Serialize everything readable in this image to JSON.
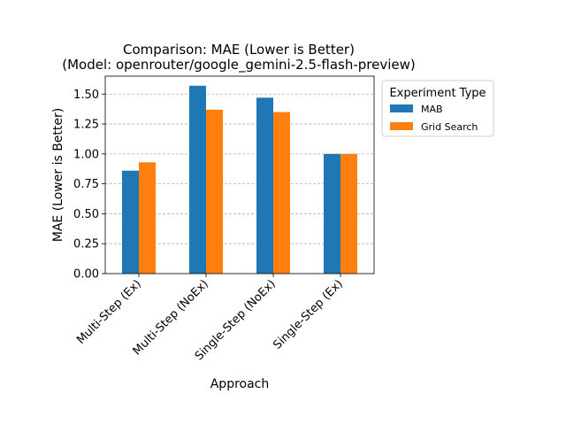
{
  "chart_data": {
    "type": "bar",
    "title": "Comparison: MAE (Lower is Better)",
    "subtitle": "(Model: openrouter/google_gemini-2.5-flash-preview)",
    "xlabel": "Approach",
    "ylabel": "MAE (Lower is Better)",
    "categories": [
      "Multi-Step (Ex)",
      "Multi-Step (NoEx)",
      "Single-Step (NoEx)",
      "Single-Step (Ex)"
    ],
    "series": [
      {
        "name": "MAB",
        "values": [
          0.86,
          1.57,
          1.47,
          1.0
        ],
        "color": "#1f77b4"
      },
      {
        "name": "Grid Search",
        "values": [
          0.93,
          1.37,
          1.35,
          1.0
        ],
        "color": "#ff7f0e"
      }
    ],
    "ylim": [
      0,
      1.65
    ],
    "yticks": [
      "0.00",
      "0.25",
      "0.50",
      "0.75",
      "1.00",
      "1.25",
      "1.50"
    ],
    "grid": "y-dashed",
    "legend": {
      "title": "Experiment Type",
      "placement": "outside-right"
    }
  }
}
